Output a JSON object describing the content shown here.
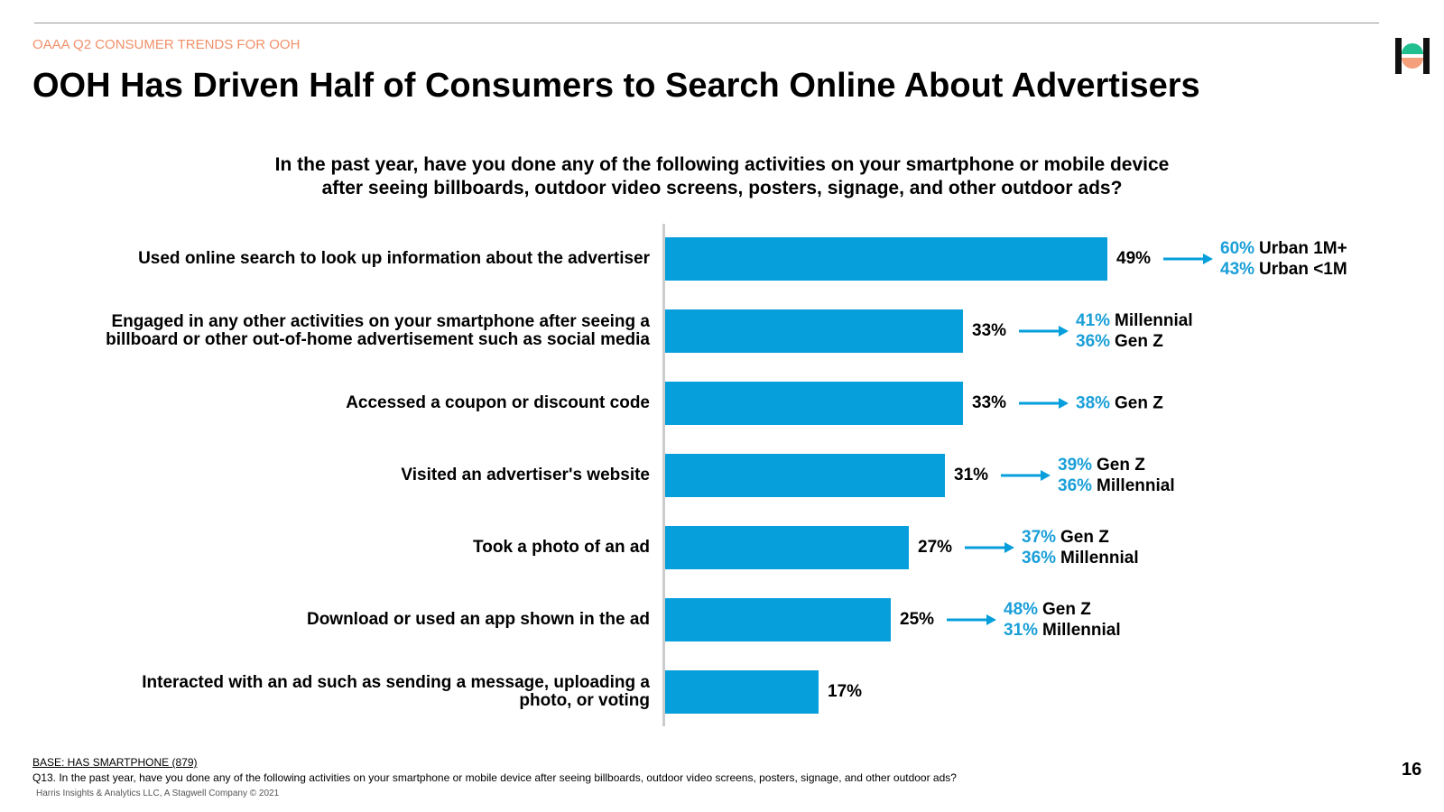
{
  "header": {
    "kicker": "OAAA Q2 CONSUMER TRENDS FOR OOH",
    "title": "OOH Has Driven Half of Consumers to Search Online About Advertisers",
    "page_number": "16"
  },
  "chart_data": {
    "type": "bar",
    "orientation": "horizontal",
    "subtitle": [
      "In the past year, have you done any of the following activities on your smartphone or mobile device",
      "after seeing billboards, outdoor video screens, posters, signage, and other outdoor ads?"
    ],
    "categories": [
      "Used online search to look up information about the advertiser",
      "Engaged in any other activities on your smartphone after seeing a\nbillboard or other out-of-home advertisement such as social media",
      "Accessed a coupon or discount code",
      "Visited an advertiser's website",
      "Took a photo of an ad",
      "Download or used an app shown in the ad",
      "Interacted with an ad such as sending a message, uploading a\nphoto, or voting"
    ],
    "values": [
      49,
      33,
      33,
      31,
      27,
      25,
      17
    ],
    "value_labels": [
      "49%",
      "33%",
      "33%",
      "31%",
      "27%",
      "25%",
      "17%"
    ],
    "color": "#069fdc",
    "callouts": [
      [
        {
          "value": 60,
          "label": "60%",
          "group": "Urban 1M+"
        },
        {
          "value": 43,
          "label": "43%",
          "group": "Urban <1M"
        }
      ],
      [
        {
          "value": 41,
          "label": "41%",
          "group": "Millennial"
        },
        {
          "value": 36,
          "label": "36%",
          "group": "Gen Z"
        }
      ],
      [
        {
          "value": 38,
          "label": "38%",
          "group": "Gen Z"
        }
      ],
      [
        {
          "value": 39,
          "label": "39%",
          "group": "Gen Z"
        },
        {
          "value": 36,
          "label": "36%",
          "group": "Millennial"
        }
      ],
      [
        {
          "value": 37,
          "label": "37%",
          "group": "Gen Z"
        },
        {
          "value": 36,
          "label": "36%",
          "group": "Millennial"
        }
      ],
      [
        {
          "value": 48,
          "label": "48%",
          "group": "Gen Z"
        },
        {
          "value": 31,
          "label": "31%",
          "group": "Millennial"
        }
      ],
      []
    ]
  },
  "footer": {
    "base": "BASE: HAS SMARTPHONE (879)",
    "question": "Q13. In the past year, have you done any of the following activities on your smartphone or mobile device after seeing billboards, outdoor video screens, posters, signage, and other outdoor ads?",
    "copyright": "Harris Insights & Analytics LLC, A Stagwell Company © 2021"
  }
}
